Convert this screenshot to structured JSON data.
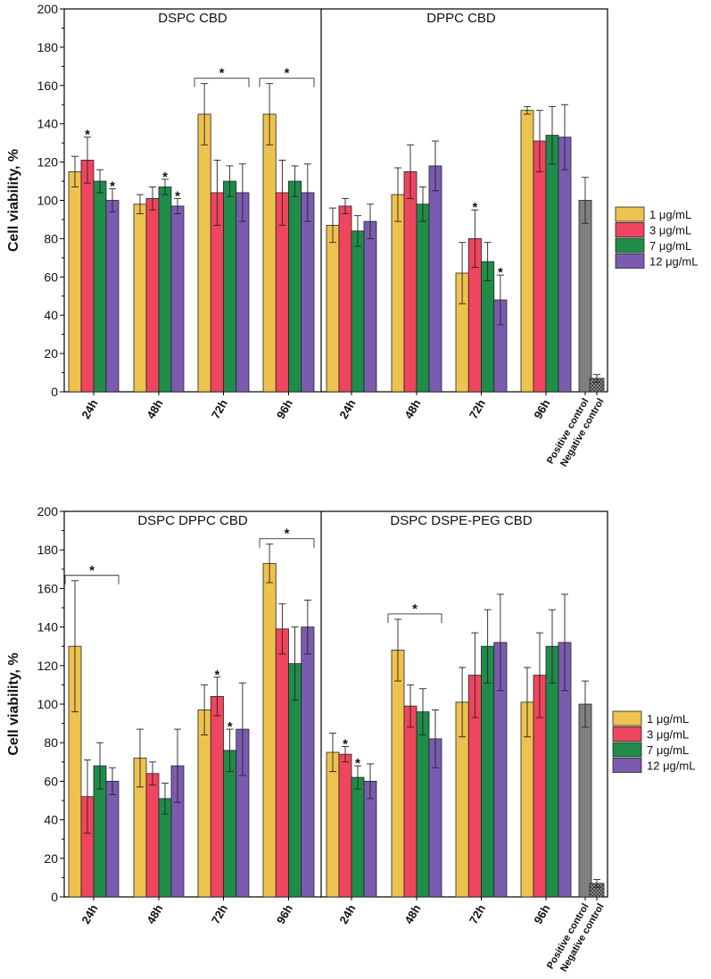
{
  "colors": {
    "c1": "#EEC24E",
    "c3": "#F0455F",
    "c7": "#1F8C4A",
    "c12": "#7B5BB0",
    "positive": "#808080",
    "negative": "#505050"
  },
  "chart_data": [
    {
      "type": "bar",
      "ylabel": "Cell viability, %",
      "ylim": [
        0,
        200
      ],
      "yticks": [
        "0",
        "20",
        "40",
        "60",
        "80",
        "100",
        "120",
        "140",
        "160",
        "180",
        "200"
      ],
      "series_names": [
        "1 μg/mL",
        "3 μg/mL",
        "7 μg/mL",
        "12 μg/mL"
      ],
      "panels": [
        {
          "title": "DSPC CBD",
          "categories": [
            "24h",
            "48h",
            "72h",
            "96h"
          ],
          "values": [
            [
              115,
              121,
              110,
              100
            ],
            [
              98,
              101,
              107,
              97
            ],
            [
              145,
              104,
              110,
              104
            ],
            [
              145,
              104,
              110,
              104
            ]
          ],
          "errors": [
            [
              8,
              12,
              6,
              6
            ],
            [
              5,
              6,
              4,
              4
            ],
            [
              16,
              17,
              8,
              15
            ],
            [
              16,
              17,
              8,
              15
            ]
          ],
          "stars": [
            [
              1,
              3
            ],
            [
              2,
              3
            ],
            [],
            []
          ],
          "brackets": [
            {
              "from": 2,
              "label": "*"
            },
            {
              "from": 3,
              "label": "*"
            }
          ]
        },
        {
          "title": "DPPC CBD",
          "categories": [
            "24h",
            "48h",
            "72h",
            "96h"
          ],
          "values": [
            [
              87,
              97,
              84,
              89
            ],
            [
              103,
              115,
              98,
              118
            ],
            [
              62,
              80,
              68,
              48
            ],
            [
              147,
              131,
              134,
              133
            ]
          ],
          "errors": [
            [
              9,
              4,
              8,
              9
            ],
            [
              14,
              14,
              9,
              13
            ],
            [
              16,
              15,
              10,
              13
            ],
            [
              2,
              16,
              15,
              17
            ]
          ],
          "stars": [
            [],
            [],
            [
              1,
              3
            ],
            []
          ],
          "brackets": []
        }
      ],
      "controls": {
        "labels": [
          "Positive control",
          "Negative control"
        ],
        "values": [
          100,
          7
        ],
        "errors": [
          12,
          2
        ]
      }
    },
    {
      "type": "bar",
      "ylabel": "Cell viability, %",
      "ylim": [
        0,
        200
      ],
      "yticks": [
        "0",
        "20",
        "40",
        "60",
        "80",
        "100",
        "120",
        "140",
        "160",
        "180",
        "200"
      ],
      "series_names": [
        "1 μg/mL",
        "3 μg/mL",
        "7 μg/mL",
        "12 μg/mL"
      ],
      "panels": [
        {
          "title": "DSPC DPPC CBD",
          "categories": [
            "24h",
            "48h",
            "72h",
            "96h"
          ],
          "values": [
            [
              130,
              52,
              68,
              60
            ],
            [
              72,
              64,
              51,
              68
            ],
            [
              97,
              104,
              76,
              87
            ],
            [
              173,
              139,
              121,
              140
            ]
          ],
          "errors": [
            [
              34,
              19,
              12,
              7
            ],
            [
              15,
              6,
              8,
              19
            ],
            [
              13,
              10,
              11,
              24
            ],
            [
              10,
              13,
              19,
              14
            ]
          ],
          "stars": [
            [],
            [],
            [
              1,
              2
            ],
            []
          ],
          "brackets": [
            {
              "from": 0,
              "label": "*"
            },
            {
              "from": 3,
              "label": "*"
            }
          ]
        },
        {
          "title": "DSPC DSPE-PEG CBD",
          "categories": [
            "24h",
            "48h",
            "72h",
            "96h"
          ],
          "values": [
            [
              75,
              74,
              62,
              60
            ],
            [
              128,
              99,
              96,
              82
            ],
            [
              101,
              115,
              130,
              132
            ],
            [
              101,
              115,
              130,
              132
            ]
          ],
          "errors": [
            [
              10,
              4,
              6,
              9
            ],
            [
              16,
              11,
              12,
              15
            ],
            [
              18,
              22,
              19,
              25
            ],
            [
              18,
              22,
              19,
              25
            ]
          ],
          "stars": [
            [
              1,
              2
            ],
            [],
            [],
            []
          ],
          "brackets": [
            {
              "from": 1,
              "label": "*"
            }
          ]
        }
      ],
      "controls": {
        "labels": [
          "Positive control",
          "Negative control"
        ],
        "values": [
          100,
          7
        ],
        "errors": [
          12,
          2
        ]
      }
    }
  ]
}
